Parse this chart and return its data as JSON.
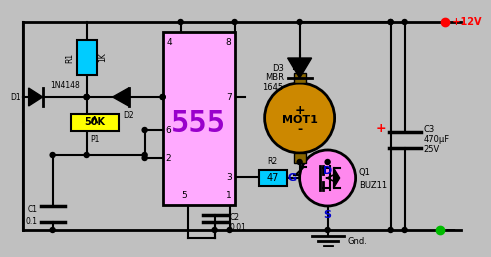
{
  "bg_color": "#c0c0c0",
  "wire_color": "#000000",
  "ic555_color": "#ffaaff",
  "ic555_label_color": "#9900cc",
  "R1_color": "#00ccff",
  "R2_color": "#00ccff",
  "P1_color": "#ffff00",
  "MOT1_color": "#cc8800",
  "MOT1_body_color": "#886600",
  "Q1_color": "#ff88ee",
  "vcc_color": "#ff0000",
  "gnd_dot_color": "#00bb00",
  "c3_plus_color": "#ff0000",
  "DGS_color": "#0000cc",
  "label_1N4148": "1N4148",
  "label_D2": "D2",
  "label_D1": "D1",
  "label_R1": "R1",
  "label_R1v": "1K",
  "label_R2": "R2",
  "label_R2v": "47",
  "label_P1v": "50K",
  "label_P1": "P1",
  "label_C1": "C1",
  "label_C1v": "0.1",
  "label_C2": "C2",
  "label_C2v": "0.01",
  "label_C3": "C3",
  "label_C3v1": "470μF",
  "label_C3v2": "25V",
  "label_D3": "D3",
  "label_D3v1": "MBR",
  "label_D3v2": "1645",
  "label_MOT1": "MOT1",
  "label_Q1": "Q1",
  "label_BUZ11": "BUZ11",
  "label_VCC": "+12V",
  "label_GND": "Gnd.",
  "label_555": "555",
  "label_G": "G",
  "label_D": "D",
  "label_S": "S"
}
